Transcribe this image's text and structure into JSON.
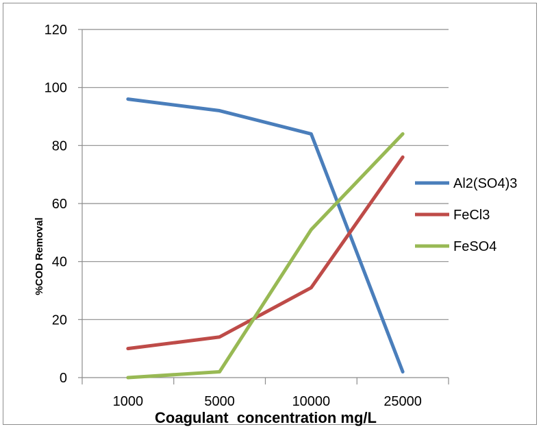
{
  "chart_data": {
    "type": "line",
    "title": "",
    "xlabel": "Coagulant  concentration mg/L",
    "ylabel": "%COD Removal",
    "categories": [
      "1000",
      "5000",
      "10000",
      "25000"
    ],
    "ylim": [
      0,
      120
    ],
    "yticks": [
      "0",
      "20",
      "40",
      "60",
      "80",
      "100",
      "120"
    ],
    "grid": true,
    "legend_position": "right",
    "series": [
      {
        "name": "Al2(SO4)3",
        "color": "#4a7ebb",
        "values": [
          96,
          92,
          84,
          2
        ]
      },
      {
        "name": "FeCl3",
        "color": "#be4b48",
        "values": [
          10,
          14,
          31,
          76
        ]
      },
      {
        "name": "FeSO4",
        "color": "#98b954",
        "values": [
          0,
          2,
          51,
          84
        ]
      }
    ]
  }
}
